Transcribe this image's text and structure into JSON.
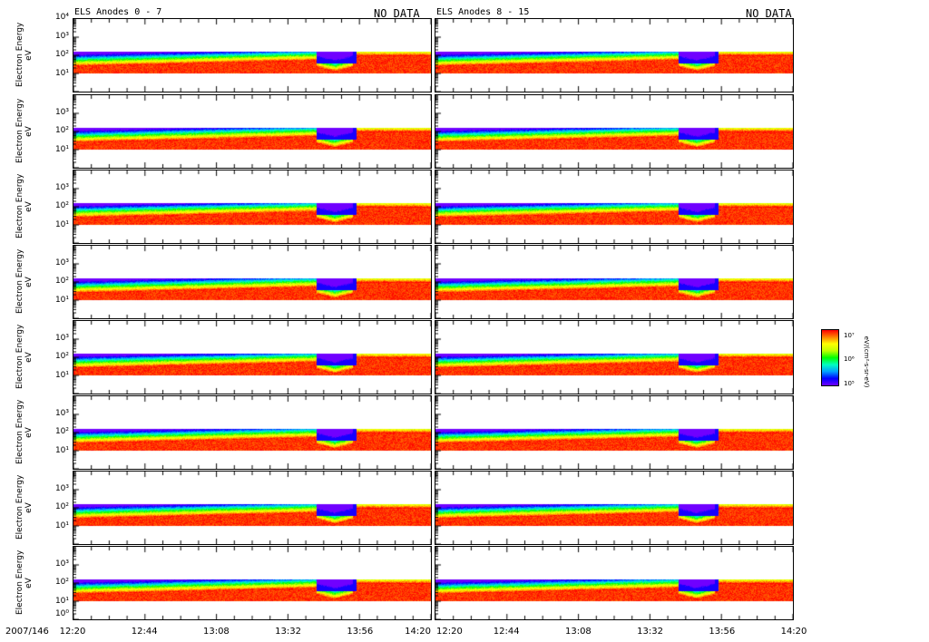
{
  "chart_data": {
    "type": "heatmap",
    "title_left": "ELS Anodes 0 - 7",
    "title_right": "ELS Anodes 8 - 15",
    "no_data_left": "NO DATA",
    "no_data_right": "NO DATA",
    "ylabel": "Electron Energy",
    "yunit": "eV",
    "yscale": "log",
    "ylim": [
      1,
      10000
    ],
    "ytick_labels": [
      "10⁰",
      "10¹",
      "10²",
      "10³",
      "10⁴"
    ],
    "date_label": "2007/146",
    "xtick_labels": [
      "12:20",
      "12:44",
      "13:08",
      "13:32",
      "13:56",
      "14:20"
    ],
    "xlim": [
      "12:20",
      "14:20"
    ],
    "energy_band_eV": [
      10,
      150
    ],
    "panels_left": [
      "Anode 0",
      "Anode 1",
      "Anode 2",
      "Anode 3",
      "Anode 4",
      "Anode 5",
      "Anode 6",
      "Anode 7"
    ],
    "panels_right": [
      "Anode 8",
      "Anode 9",
      "Anode 10",
      "Anode 11",
      "Anode 12",
      "Anode 13",
      "Anode 14",
      "Anode 15"
    ],
    "colorbar": {
      "label": "eV/(cm²-s-sr-eV)",
      "tick_labels": [
        "10⁵",
        "10⁶",
        "10⁷"
      ],
      "colors": [
        "#7000ff",
        "#0000ff",
        "#00a0ff",
        "#00ff00",
        "#ffff00",
        "#ff8000",
        "#ff0000"
      ]
    }
  }
}
